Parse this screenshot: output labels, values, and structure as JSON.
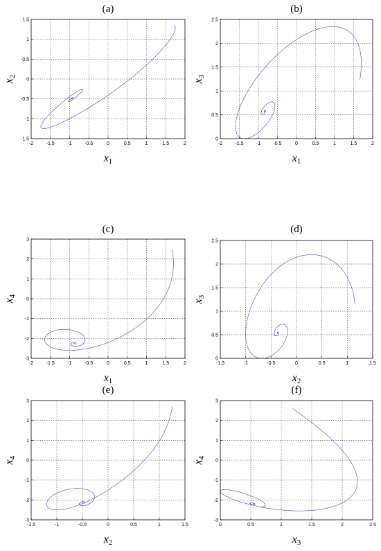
{
  "chart_data": [
    {
      "type": "line",
      "panel_label": "(a)",
      "xlabel": "x1",
      "ylabel": "x2",
      "xlim": [
        -2,
        2
      ],
      "ylim": [
        -1.5,
        1.5
      ],
      "xticks": [
        "-2",
        "-1.5",
        "-1",
        "-0.5",
        "0",
        "0.5",
        "1",
        "1.5",
        "2"
      ],
      "yticks": [
        "-1.5",
        "-1",
        "-0.5",
        "0",
        "0.5",
        "1",
        "1.5"
      ],
      "grid": true,
      "series": [
        {
          "x_variable": "x1",
          "y_variable": "x2",
          "color": "#1f1fd6"
        }
      ]
    },
    {
      "type": "line",
      "panel_label": "(b)",
      "xlabel": "x1",
      "ylabel": "x3",
      "xlim": [
        -2,
        2
      ],
      "ylim": [
        0,
        2.5
      ],
      "xticks": [
        "-2",
        "-1.5",
        "-1",
        "-0.5",
        "0",
        "0.5",
        "1",
        "1.5",
        "2"
      ],
      "yticks": [
        "0",
        "0.5",
        "1",
        "1.5",
        "2",
        "2.5"
      ],
      "grid": true,
      "series": [
        {
          "x_variable": "x1",
          "y_variable": "x3",
          "color": "#1f1fd6"
        }
      ]
    },
    {
      "type": "line",
      "panel_label": "(c)",
      "xlabel": "x1",
      "ylabel": "x4",
      "xlim": [
        -2,
        2
      ],
      "ylim": [
        -3,
        3
      ],
      "xticks": [
        "-2",
        "-1.5",
        "-1",
        "-0.5",
        "0",
        "0.5",
        "1",
        "1.5",
        "2"
      ],
      "yticks": [
        "-3",
        "-2",
        "-1",
        "0",
        "1",
        "2",
        "3"
      ],
      "grid": true,
      "series": [
        {
          "x_variable": "x1",
          "y_variable": "x4",
          "color": "#1f1fd6"
        }
      ]
    },
    {
      "type": "line",
      "panel_label": "(d)",
      "xlabel": "x2",
      "ylabel": "x3",
      "xlim": [
        -1.5,
        1.5
      ],
      "ylim": [
        0,
        2.5
      ],
      "xticks": [
        "-1.5",
        "-1",
        "-0.5",
        "0",
        "0.5",
        "1",
        "1.5"
      ],
      "yticks": [
        "0",
        "0.5",
        "1",
        "1.5",
        "2",
        "2.5"
      ],
      "grid": true,
      "series": [
        {
          "x_variable": "x2",
          "y_variable": "x3",
          "color": "#1f1fd6"
        }
      ]
    },
    {
      "type": "line",
      "panel_label": "(e)",
      "xlabel": "x2",
      "ylabel": "x4",
      "xlim": [
        -1.5,
        1.5
      ],
      "ylim": [
        -3,
        3
      ],
      "xticks": [
        "-1.5",
        "-1",
        "-0.5",
        "0",
        "0.5",
        "1",
        "1.5"
      ],
      "yticks": [
        "-3",
        "-2",
        "-1",
        "0",
        "1",
        "2",
        "3"
      ],
      "grid": true,
      "series": [
        {
          "x_variable": "x2",
          "y_variable": "x4",
          "color": "#1f1fd6"
        }
      ]
    },
    {
      "type": "line",
      "panel_label": "(f)",
      "xlabel": "x3",
      "ylabel": "x4",
      "xlim": [
        0,
        2.5
      ],
      "ylim": [
        -3,
        3
      ],
      "xticks": [
        "0",
        "0.5",
        "1",
        "1.5",
        "2",
        "2.5"
      ],
      "yticks": [
        "-3",
        "-2",
        "-1",
        "0",
        "1",
        "2",
        "3"
      ],
      "grid": true,
      "series": [
        {
          "x_variable": "x3",
          "y_variable": "x4",
          "color": "#1f1fd6"
        }
      ]
    }
  ]
}
